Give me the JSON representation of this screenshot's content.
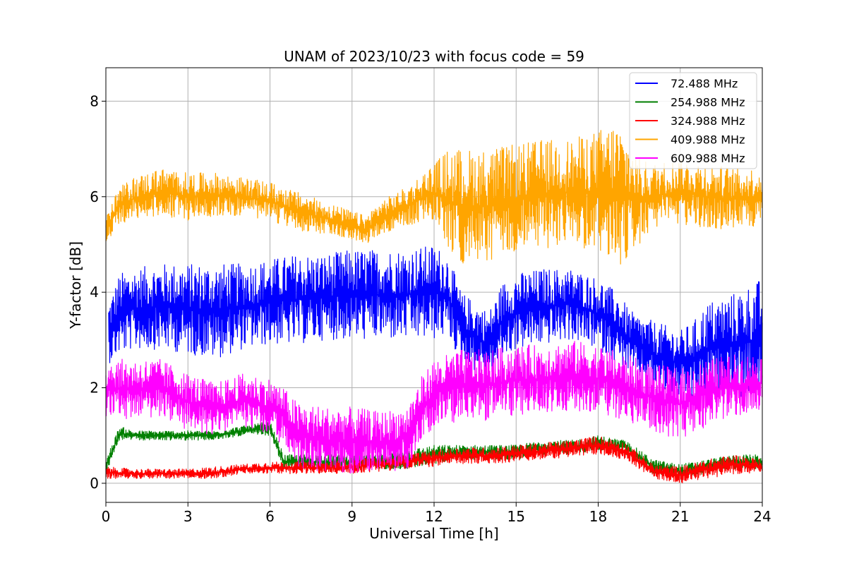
{
  "chart_data": {
    "type": "line",
    "title": "UNAM of 2023/10/23 with focus code = 59",
    "xlabel": "Universal Time [h]",
    "ylabel": "Y-factor [dB]",
    "xlim": [
      0,
      24
    ],
    "ylim": [
      -0.4,
      8.7
    ],
    "xticks": [
      0,
      3,
      6,
      9,
      12,
      15,
      18,
      21,
      24
    ],
    "yticks": [
      0,
      2,
      4,
      6,
      8
    ],
    "grid": true,
    "legend_position": "top-right",
    "series": [
      {
        "name": "72.488 MHz",
        "color": "#0000ff",
        "band_x": [
          0.1,
          0.5,
          1,
          2,
          3,
          4,
          5,
          6,
          7,
          8,
          9,
          10,
          11,
          12,
          12.5,
          13,
          14,
          14.5,
          15,
          16,
          17,
          18,
          18.7,
          19.2,
          20,
          21,
          21.5,
          22,
          23,
          24
        ],
        "low": [
          2.5,
          2.7,
          2.8,
          2.8,
          2.7,
          2.6,
          2.8,
          2.9,
          2.9,
          3.0,
          3.0,
          3.0,
          3.0,
          3.0,
          3.1,
          2.5,
          2.2,
          2.6,
          2.8,
          2.9,
          3.0,
          2.8,
          2.5,
          2.3,
          2.0,
          1.8,
          1.7,
          1.8,
          1.8,
          1.7
        ],
        "high": [
          3.8,
          4.4,
          4.5,
          4.6,
          4.6,
          4.6,
          4.6,
          4.7,
          4.8,
          4.8,
          4.9,
          4.9,
          4.9,
          5.0,
          4.8,
          4.0,
          3.6,
          4.2,
          4.4,
          4.5,
          4.5,
          4.3,
          4.0,
          3.6,
          3.4,
          3.2,
          3.4,
          3.8,
          4.0,
          4.3
        ]
      },
      {
        "name": "254.988 MHz",
        "color": "#008000",
        "band_x": [
          0,
          0.5,
          1,
          2,
          3,
          4,
          5,
          6,
          6.5,
          7,
          8,
          9,
          10,
          11,
          12,
          13,
          14,
          15,
          16,
          17,
          18,
          19,
          20,
          21,
          22,
          23,
          24
        ],
        "low": [
          0.2,
          0.9,
          0.9,
          0.9,
          0.9,
          0.9,
          1.0,
          1.0,
          0.3,
          0.3,
          0.3,
          0.3,
          0.3,
          0.3,
          0.4,
          0.5,
          0.5,
          0.5,
          0.6,
          0.6,
          0.7,
          0.6,
          0.2,
          0.1,
          0.2,
          0.3,
          0.3
        ],
        "high": [
          0.5,
          1.2,
          1.1,
          1.1,
          1.1,
          1.1,
          1.2,
          1.3,
          0.6,
          0.6,
          0.6,
          0.6,
          0.6,
          0.7,
          0.8,
          0.8,
          0.8,
          0.8,
          0.9,
          0.9,
          1.0,
          0.9,
          0.5,
          0.4,
          0.5,
          0.6,
          0.6
        ]
      },
      {
        "name": "324.988 MHz",
        "color": "#ff0000",
        "band_x": [
          0,
          1,
          2,
          3,
          4,
          5,
          6,
          7,
          8,
          9,
          10,
          11,
          12,
          13,
          14,
          15,
          16,
          17,
          18,
          19,
          20,
          21,
          22,
          23,
          24
        ],
        "low": [
          0.1,
          0.1,
          0.1,
          0.1,
          0.1,
          0.2,
          0.2,
          0.2,
          0.2,
          0.2,
          0.25,
          0.3,
          0.35,
          0.4,
          0.4,
          0.45,
          0.5,
          0.55,
          0.6,
          0.5,
          0.1,
          0.0,
          0.1,
          0.2,
          0.2
        ],
        "high": [
          0.35,
          0.3,
          0.3,
          0.3,
          0.35,
          0.4,
          0.45,
          0.45,
          0.45,
          0.5,
          0.55,
          0.6,
          0.7,
          0.75,
          0.75,
          0.8,
          0.85,
          0.9,
          1.0,
          0.85,
          0.4,
          0.35,
          0.5,
          0.6,
          0.5
        ]
      },
      {
        "name": "409.988 MHz",
        "color": "#ffa500",
        "band_x": [
          0,
          0.5,
          1,
          2,
          3,
          4,
          5,
          6,
          7,
          8,
          9,
          9.5,
          10,
          11,
          12,
          12.5,
          13,
          14,
          15,
          16,
          17,
          18,
          18.7,
          19.5,
          20,
          21,
          22,
          23,
          24
        ],
        "low": [
          5.0,
          5.4,
          5.5,
          5.6,
          5.5,
          5.6,
          5.6,
          5.5,
          5.3,
          5.2,
          5.1,
          5.0,
          5.2,
          5.4,
          5.5,
          4.8,
          4.6,
          4.6,
          4.8,
          4.9,
          5.0,
          4.8,
          4.5,
          5.0,
          5.3,
          5.4,
          5.3,
          5.3,
          5.4
        ],
        "high": [
          5.6,
          6.2,
          6.4,
          6.6,
          6.5,
          6.5,
          6.4,
          6.3,
          6.1,
          5.9,
          5.7,
          5.6,
          5.9,
          6.2,
          6.7,
          7.0,
          7.0,
          7.0,
          7.1,
          7.2,
          7.2,
          7.4,
          7.6,
          6.8,
          6.7,
          6.8,
          6.7,
          6.6,
          6.6
        ]
      },
      {
        "name": "609.988 MHz",
        "color": "#ff00ff",
        "band_x": [
          0,
          1,
          2,
          3,
          4,
          5,
          6,
          6.5,
          7,
          8,
          9,
          10,
          11,
          11.5,
          12,
          13,
          14,
          15,
          16,
          17,
          18,
          19,
          20,
          21,
          22,
          23,
          24
        ],
        "low": [
          1.4,
          1.3,
          1.4,
          1.1,
          1.0,
          1.2,
          1.0,
          0.8,
          0.3,
          0.2,
          0.2,
          0.2,
          0.3,
          0.8,
          1.2,
          1.3,
          1.3,
          1.4,
          1.5,
          1.5,
          1.5,
          1.3,
          1.1,
          0.9,
          1.2,
          1.4,
          1.5
        ],
        "high": [
          2.6,
          2.6,
          2.6,
          2.3,
          2.1,
          2.3,
          2.2,
          2.0,
          1.7,
          1.6,
          1.6,
          1.5,
          1.6,
          2.2,
          2.6,
          2.8,
          2.8,
          2.9,
          2.9,
          3.0,
          2.9,
          2.7,
          2.5,
          2.4,
          2.6,
          2.7,
          2.7
        ]
      }
    ]
  }
}
